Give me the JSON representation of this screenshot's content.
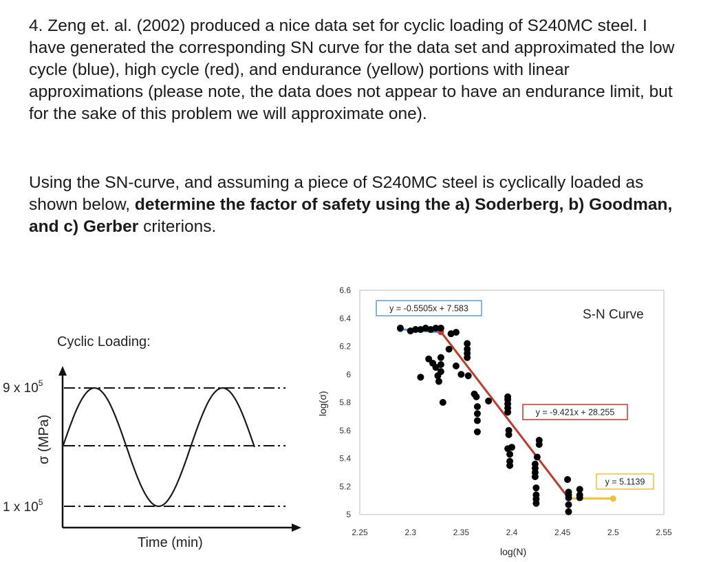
{
  "problem": {
    "number": "4.",
    "p1": "Zeng et. al. (2002) produced a nice data set for cyclic loading of S240MC steel. I have generated the corresponding SN curve for the data set and approximated the low cycle (blue), high cycle (red), and endurance (yellow) portions with linear approximations (please note, the data does not appear to have an endurance limit, but for the sake of this problem we will approximate one).",
    "p2_start": "Using the SN-curve, and assuming a piece of S240MC steel is cyclically loaded as shown below, ",
    "p2_bold1": "determine the factor of safety using the a) Soderberg, b) Goodman, and c) Gerber",
    "p2_end": " criterions."
  },
  "cyclic": {
    "title": "Cyclic Loading:",
    "y_label": "σ (MPa)",
    "max_label": "9 x 10",
    "max_exp": "5",
    "min_label": "1 x 10",
    "min_exp": "5",
    "x_label": "Time (min)",
    "sigma_max": 900000,
    "sigma_min": 100000,
    "cycles_shown": 1.5
  },
  "chart_data": {
    "type": "scatter",
    "title": "S-N Curve",
    "xlabel": "log(N)",
    "ylabel": "log(σ)",
    "xlim": [
      2.25,
      2.55
    ],
    "ylim": [
      5,
      6.6
    ],
    "x_ticks": [
      "2.25",
      "2.3",
      "2.35",
      "2.4",
      "2.45",
      "2.5",
      "2.55"
    ],
    "y_ticks": [
      "5",
      "5.2",
      "5.4",
      "5.6",
      "5.8",
      "6",
      "6.2",
      "6.4",
      "6.6"
    ],
    "x_tick_values": [
      2.25,
      2.3,
      2.35,
      2.4,
      2.45,
      2.5,
      2.55
    ],
    "y_tick_values": [
      5,
      5.2,
      5.4,
      5.6,
      5.8,
      6,
      6.2,
      6.4,
      6.6
    ],
    "grid": false,
    "series": [
      {
        "values": [
          [
            2.29,
            6.33
          ],
          [
            2.3,
            6.31
          ],
          [
            2.305,
            6.32
          ],
          [
            2.31,
            6.32
          ],
          [
            2.315,
            6.33
          ],
          [
            2.32,
            6.32
          ],
          [
            2.325,
            6.33
          ],
          [
            2.33,
            6.33
          ],
          [
            2.34,
            6.29
          ],
          [
            2.345,
            6.3
          ],
          [
            2.31,
            5.98
          ],
          [
            2.318,
            6.11
          ],
          [
            2.322,
            6.08
          ],
          [
            2.325,
            6.05
          ],
          [
            2.327,
            5.99
          ],
          [
            2.328,
            5.95
          ],
          [
            2.33,
            6.12
          ],
          [
            2.33,
            6.07
          ],
          [
            2.33,
            6.02
          ],
          [
            2.332,
            5.8
          ],
          [
            2.338,
            6.18
          ],
          [
            2.345,
            6.06
          ],
          [
            2.35,
            6
          ],
          [
            2.356,
            6.22
          ],
          [
            2.356,
            6.18
          ],
          [
            2.356,
            6.15
          ],
          [
            2.356,
            6.12
          ],
          [
            2.357,
            5.99
          ],
          [
            2.363,
            5.86
          ],
          [
            2.365,
            5.84
          ],
          [
            2.366,
            5.77
          ],
          [
            2.366,
            5.72
          ],
          [
            2.366,
            5.67
          ],
          [
            2.366,
            5.59
          ],
          [
            2.377,
            5.81
          ],
          [
            2.396,
            5.84
          ],
          [
            2.396,
            5.82
          ],
          [
            2.396,
            5.79
          ],
          [
            2.396,
            5.76
          ],
          [
            2.396,
            5.73
          ],
          [
            2.397,
            5.6
          ],
          [
            2.397,
            5.57
          ],
          [
            2.396,
            5.47
          ],
          [
            2.398,
            5.43
          ],
          [
            2.398,
            5.38
          ],
          [
            2.398,
            5.35
          ],
          [
            2.4,
            5.48
          ],
          [
            2.423,
            5.36
          ],
          [
            2.423,
            5.33
          ],
          [
            2.423,
            5.3
          ],
          [
            2.423,
            5.27
          ],
          [
            2.424,
            5.19
          ],
          [
            2.424,
            5.14
          ],
          [
            2.424,
            5.11
          ],
          [
            2.424,
            5.08
          ],
          [
            2.425,
            5.41
          ],
          [
            2.427,
            5.53
          ],
          [
            2.427,
            5.5
          ],
          [
            2.455,
            5.25
          ],
          [
            2.456,
            5.16
          ],
          [
            2.456,
            5.14
          ],
          [
            2.456,
            5.12
          ],
          [
            2.456,
            5.07
          ],
          [
            2.456,
            5.02
          ],
          [
            2.467,
            5.18
          ],
          [
            2.467,
            5.14
          ],
          [
            2.467,
            5.12
          ]
        ]
      }
    ],
    "fits": [
      {
        "label": "y = -0.5505x + 7.583",
        "color": "#5b9bd5",
        "x": [
          2.29,
          2.33
        ],
        "slope": -0.5505,
        "intercept": 7.583
      },
      {
        "label": "y = -9.421x + 28.255",
        "color": "#c0392b",
        "x": [
          2.33,
          2.456
        ],
        "slope": -9.421,
        "intercept": 28.255
      },
      {
        "label": "y = 5.1139",
        "color": "#f0c030",
        "x": [
          2.456,
          2.5
        ],
        "slope": 0,
        "intercept": 5.1139
      }
    ]
  }
}
